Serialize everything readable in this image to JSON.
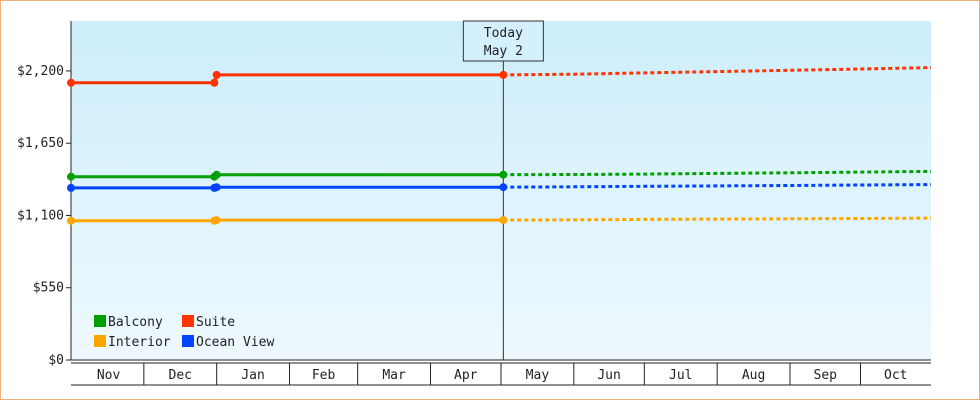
{
  "chart_data": {
    "type": "line",
    "y_axis": {
      "min": 0,
      "max": 2580,
      "ticks": [
        {
          "value": 0,
          "label": "$0"
        },
        {
          "value": 550,
          "label": "$550"
        },
        {
          "value": 1100,
          "label": "$1,100"
        },
        {
          "value": 1650,
          "label": "$1,650"
        },
        {
          "value": 2200,
          "label": "$2,200"
        }
      ]
    },
    "x_axis": {
      "start": "2023-10-31",
      "end": "2024-10-31",
      "months": [
        {
          "label": "Nov",
          "start": "2023-11-01",
          "end": "2023-12-01"
        },
        {
          "label": "Dec",
          "start": "2023-12-01",
          "end": "2024-01-01"
        },
        {
          "label": "Jan",
          "start": "2024-01-01",
          "end": "2024-02-01"
        },
        {
          "label": "Feb",
          "start": "2024-02-01",
          "end": "2024-03-01"
        },
        {
          "label": "Mar",
          "start": "2024-03-01",
          "end": "2024-04-01"
        },
        {
          "label": "Apr",
          "start": "2024-04-01",
          "end": "2024-05-01"
        },
        {
          "label": "May",
          "start": "2024-05-01",
          "end": "2024-06-01"
        },
        {
          "label": "Jun",
          "start": "2024-06-01",
          "end": "2024-07-01"
        },
        {
          "label": "Jul",
          "start": "2024-07-01",
          "end": "2024-08-01"
        },
        {
          "label": "Aug",
          "start": "2024-08-01",
          "end": "2024-09-01"
        },
        {
          "label": "Sep",
          "start": "2024-09-01",
          "end": "2024-10-01"
        },
        {
          "label": "Oct",
          "start": "2024-10-01",
          "end": "2024-11-01"
        }
      ]
    },
    "today": {
      "date": "2024-05-02",
      "label_line1": "Today",
      "label_line2": "May 2"
    },
    "legend": {
      "placement": "bottom-left"
    },
    "series": [
      {
        "name": "Suite",
        "color": "#ff3300",
        "history": [
          {
            "x": "2023-10-31",
            "y": 2110
          },
          {
            "x": "2023-12-31",
            "y": 2110
          },
          {
            "x": "2024-01-01",
            "y": 2170
          },
          {
            "x": "2024-05-02",
            "y": 2170
          }
        ],
        "forecast": [
          {
            "x": "2024-05-02",
            "y": 2170
          },
          {
            "x": "2024-06-01",
            "y": 2175
          },
          {
            "x": "2024-07-01",
            "y": 2185
          },
          {
            "x": "2024-08-01",
            "y": 2195
          },
          {
            "x": "2024-09-01",
            "y": 2205
          },
          {
            "x": "2024-10-01",
            "y": 2215
          },
          {
            "x": "2024-10-31",
            "y": 2225
          }
        ]
      },
      {
        "name": "Balcony",
        "color": "#00a000",
        "history": [
          {
            "x": "2023-10-31",
            "y": 1395
          },
          {
            "x": "2023-12-31",
            "y": 1395
          },
          {
            "x": "2024-01-01",
            "y": 1410
          },
          {
            "x": "2024-05-02",
            "y": 1410
          }
        ],
        "forecast": [
          {
            "x": "2024-05-02",
            "y": 1410
          },
          {
            "x": "2024-06-01",
            "y": 1412
          },
          {
            "x": "2024-07-01",
            "y": 1415
          },
          {
            "x": "2024-08-01",
            "y": 1420
          },
          {
            "x": "2024-09-01",
            "y": 1425
          },
          {
            "x": "2024-10-01",
            "y": 1430
          },
          {
            "x": "2024-10-31",
            "y": 1435
          }
        ]
      },
      {
        "name": "Ocean View",
        "color": "#0044ff",
        "history": [
          {
            "x": "2023-10-31",
            "y": 1310
          },
          {
            "x": "2023-12-31",
            "y": 1310
          },
          {
            "x": "2024-01-01",
            "y": 1315
          },
          {
            "x": "2024-05-02",
            "y": 1315
          }
        ],
        "forecast": [
          {
            "x": "2024-05-02",
            "y": 1315
          },
          {
            "x": "2024-06-01",
            "y": 1318
          },
          {
            "x": "2024-07-01",
            "y": 1322
          },
          {
            "x": "2024-08-01",
            "y": 1325
          },
          {
            "x": "2024-09-01",
            "y": 1328
          },
          {
            "x": "2024-10-01",
            "y": 1332
          },
          {
            "x": "2024-10-31",
            "y": 1335
          }
        ]
      },
      {
        "name": "Interior",
        "color": "#ffa500",
        "history": [
          {
            "x": "2023-10-31",
            "y": 1060
          },
          {
            "x": "2023-12-31",
            "y": 1060
          },
          {
            "x": "2024-01-01",
            "y": 1065
          },
          {
            "x": "2024-05-02",
            "y": 1065
          }
        ],
        "forecast": [
          {
            "x": "2024-05-02",
            "y": 1065
          },
          {
            "x": "2024-06-01",
            "y": 1067
          },
          {
            "x": "2024-07-01",
            "y": 1070
          },
          {
            "x": "2024-08-01",
            "y": 1072
          },
          {
            "x": "2024-09-01",
            "y": 1075
          },
          {
            "x": "2024-10-01",
            "y": 1077
          },
          {
            "x": "2024-10-31",
            "y": 1080
          }
        ]
      }
    ],
    "legend_order": [
      "Balcony",
      "Suite",
      "Interior",
      "Ocean View"
    ]
  }
}
